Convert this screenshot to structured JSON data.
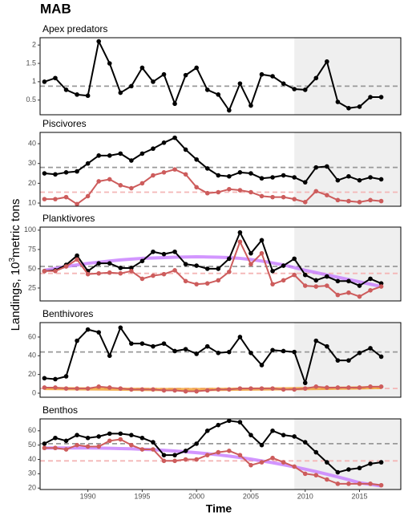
{
  "title": "MAB",
  "xlabel": "Time",
  "ylabel_parts": [
    "Landings, 10",
    "3",
    "metric tons"
  ],
  "chart_data": [
    {
      "type": "line",
      "title": "Apex predators",
      "xlim": [
        1985.6,
        2018.8
      ],
      "ylim": [
        0.1,
        2.2
      ],
      "yticks": [
        0.5,
        1,
        1.5,
        2
      ],
      "shade_from": 2009,
      "x": [
        1986,
        1987,
        1988,
        1989,
        1990,
        1991,
        1992,
        1993,
        1994,
        1995,
        1996,
        1997,
        1998,
        1999,
        2000,
        2001,
        2002,
        2003,
        2004,
        2005,
        2006,
        2007,
        2008,
        2009,
        2010,
        2011,
        2012,
        2013,
        2014,
        2015,
        2016,
        2017
      ],
      "hlines": [
        {
          "value": 0.88,
          "color": "#999999"
        }
      ],
      "series": [
        {
          "color": "#000000",
          "points": true,
          "values": [
            1.0,
            1.1,
            0.78,
            0.65,
            0.62,
            2.1,
            1.5,
            0.7,
            0.88,
            1.38,
            1.0,
            1.2,
            0.4,
            1.18,
            1.38,
            0.78,
            0.65,
            0.22,
            0.95,
            0.35,
            1.2,
            1.15,
            0.95,
            0.8,
            0.78,
            1.1,
            1.55,
            0.45,
            0.28,
            0.32,
            0.58,
            0.58
          ]
        }
      ]
    },
    {
      "type": "line",
      "title": "Piscivores",
      "xlim": [
        1985.6,
        2018.8
      ],
      "ylim": [
        8.4,
        45.7
      ],
      "yticks": [
        10,
        20,
        30,
        40
      ],
      "shade_from": 2009,
      "x": [
        1986,
        1987,
        1988,
        1989,
        1990,
        1991,
        1992,
        1993,
        1994,
        1995,
        1996,
        1997,
        1998,
        1999,
        2000,
        2001,
        2002,
        2003,
        2004,
        2005,
        2006,
        2007,
        2008,
        2009,
        2010,
        2011,
        2012,
        2013,
        2014,
        2015,
        2016,
        2017
      ],
      "hlines": [
        {
          "value": 28,
          "color": "#999999"
        },
        {
          "value": 15.5,
          "color": "#f4b6b6"
        }
      ],
      "series": [
        {
          "color": "#000000",
          "points": true,
          "values": [
            25,
            24.5,
            25.5,
            26,
            30,
            34,
            34,
            35,
            31.5,
            35,
            37.5,
            40.5,
            43,
            37,
            32,
            27.5,
            24,
            23.5,
            25.5,
            25,
            22.5,
            23,
            24,
            23,
            20.5,
            28,
            28.5,
            21.5,
            23.5,
            21.5,
            23,
            22
          ]
        },
        {
          "color": "#cd5c5c",
          "points": true,
          "values": [
            12,
            12,
            13,
            9.5,
            13.5,
            21,
            22,
            19,
            17.5,
            20,
            24,
            25.5,
            27,
            24.5,
            18,
            15,
            15.5,
            17,
            16.5,
            15.5,
            13.5,
            13,
            13,
            12,
            10.5,
            16,
            14,
            11.5,
            11,
            10.5,
            11.5,
            11
          ]
        }
      ]
    },
    {
      "type": "line",
      "title": "Planktivores",
      "xlim": [
        1985.6,
        2018.8
      ],
      "ylim": [
        8.3,
        104
      ],
      "yticks": [
        25,
        50,
        75,
        100
      ],
      "shade_from": 2009,
      "x": [
        1986,
        1987,
        1988,
        1989,
        1990,
        1991,
        1992,
        1993,
        1994,
        1995,
        1996,
        1997,
        1998,
        1999,
        2000,
        2001,
        2002,
        2003,
        2004,
        2005,
        2006,
        2007,
        2008,
        2009,
        2010,
        2011,
        2012,
        2013,
        2014,
        2015,
        2016,
        2017
      ],
      "hlines": [
        {
          "value": 53,
          "color": "#999999"
        },
        {
          "value": 44,
          "color": "#f4b6b6"
        }
      ],
      "series": [
        {
          "color": "#c77cff",
          "points": false,
          "values": [
            48,
            50.5,
            53,
            55,
            57,
            58.5,
            60,
            61.5,
            62.5,
            63.5,
            64,
            64.5,
            65,
            65.3,
            65.5,
            65.3,
            65,
            64.5,
            63.5,
            62,
            60,
            57.5,
            55,
            51.5,
            48,
            45,
            42,
            39,
            36,
            33,
            30,
            27
          ]
        },
        {
          "color": "#000000",
          "points": true,
          "values": [
            47,
            48,
            55,
            67,
            47,
            57,
            57,
            51,
            51,
            60,
            72,
            69,
            72,
            56,
            54,
            50,
            50,
            63,
            97,
            70,
            87,
            47,
            54,
            63,
            42,
            35,
            40,
            34,
            34,
            28,
            37,
            31
          ]
        },
        {
          "color": "#cd5c5c",
          "points": true,
          "values": [
            47,
            47,
            53,
            62,
            43,
            44,
            45,
            44,
            47,
            37,
            41,
            43,
            48,
            34,
            30,
            31,
            35,
            46,
            85,
            56,
            70,
            30,
            35,
            42,
            28,
            27,
            28,
            16,
            19,
            14,
            22,
            27
          ]
        }
      ]
    },
    {
      "type": "line",
      "title": "Benthivores",
      "xlim": [
        1985.6,
        2018.8
      ],
      "ylim": [
        -4.3,
        75.4
      ],
      "yticks": [
        0,
        20,
        40,
        60
      ],
      "shade_from": 2009,
      "x": [
        1986,
        1987,
        1988,
        1989,
        1990,
        1991,
        1992,
        1993,
        1994,
        1995,
        1996,
        1997,
        1998,
        1999,
        2000,
        2001,
        2002,
        2003,
        2004,
        2005,
        2006,
        2007,
        2008,
        2009,
        2010,
        2011,
        2012,
        2013,
        2014,
        2015,
        2016,
        2017
      ],
      "hlines": [
        {
          "value": 44,
          "color": "#999999"
        },
        {
          "value": 5,
          "color": "#f4b6b6"
        }
      ],
      "series": [
        {
          "color": "#000000",
          "points": true,
          "values": [
            16,
            15,
            18,
            56,
            68,
            65,
            40,
            70,
            53,
            53,
            50,
            53,
            45,
            47,
            42,
            50,
            43,
            44,
            60,
            43,
            30,
            46,
            45,
            44,
            11,
            56,
            50,
            35,
            35,
            43,
            48,
            39
          ]
        },
        {
          "color": "#f0a030",
          "points": false,
          "values": [
            5,
            4.9,
            4.8,
            4.7,
            4.6,
            4.5,
            4.4,
            4.3,
            4.2,
            4.1,
            4,
            4,
            4,
            4,
            4,
            4,
            4.1,
            4.2,
            4.3,
            4.4,
            4.5,
            4.6,
            4.7,
            4.8,
            4.9,
            5,
            5.1,
            5.3,
            5.5,
            5.7,
            5.9,
            6.1
          ]
        },
        {
          "color": "#cd5c5c",
          "points": true,
          "values": [
            6,
            6,
            5,
            5,
            5,
            7,
            6,
            5,
            4,
            4,
            4,
            3,
            3,
            2,
            2,
            3,
            4,
            4,
            5,
            5,
            5,
            5,
            4,
            4,
            5,
            7,
            6,
            6,
            6,
            6,
            7,
            7
          ]
        }
      ]
    },
    {
      "type": "line",
      "title": "Benthos",
      "xlim": [
        1985.6,
        2018.8
      ],
      "ylim": [
        19,
        68.3
      ],
      "yticks": [
        20,
        30,
        40,
        50,
        60
      ],
      "xticks": [
        1990,
        1995,
        2000,
        2005,
        2010,
        2015
      ],
      "shade_from": 2009,
      "x": [
        1986,
        1987,
        1988,
        1989,
        1990,
        1991,
        1992,
        1993,
        1994,
        1995,
        1996,
        1997,
        1998,
        1999,
        2000,
        2001,
        2002,
        2003,
        2004,
        2005,
        2006,
        2007,
        2008,
        2009,
        2010,
        2011,
        2012,
        2013,
        2014,
        2015,
        2016,
        2017
      ],
      "hlines": [
        {
          "value": 51,
          "color": "#999999"
        },
        {
          "value": 39,
          "color": "#f4b6b6"
        }
      ],
      "series": [
        {
          "color": "#c77cff",
          "points": false,
          "values": [
            48,
            48,
            48,
            48,
            48,
            47.9,
            47.8,
            47.6,
            47.4,
            47.1,
            46.8,
            46.4,
            45.9,
            45.3,
            44.7,
            44,
            43.2,
            42.3,
            41.3,
            40.2,
            39,
            37.7,
            36.3,
            34.8,
            33.2,
            31.5,
            29.7,
            27.8,
            25.8,
            23.7,
            22.6,
            21.5
          ]
        },
        {
          "color": "#000000",
          "points": true,
          "values": [
            51,
            55,
            53,
            57,
            55,
            56,
            58,
            58,
            57,
            55,
            52,
            43,
            43,
            46,
            51,
            60,
            64,
            67,
            66,
            57,
            50,
            60,
            57,
            56,
            52,
            45,
            38,
            31,
            33,
            34,
            37,
            38
          ]
        },
        {
          "color": "#cd5c5c",
          "points": true,
          "values": [
            48,
            48,
            47,
            50,
            49,
            49,
            53,
            54,
            50,
            47,
            47,
            39,
            39,
            40,
            40,
            43,
            45,
            46,
            43,
            36,
            38,
            41,
            38,
            35,
            30,
            29,
            26,
            23,
            23,
            23,
            23,
            22
          ]
        }
      ]
    }
  ]
}
